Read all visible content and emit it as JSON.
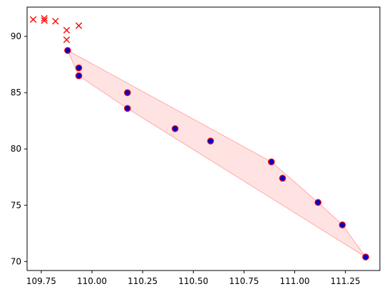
{
  "chart_data": {
    "type": "scatter",
    "title": "",
    "xlabel": "",
    "ylabel": "",
    "xlim": [
      109.68,
      111.42
    ],
    "ylim": [
      69.2,
      92.6
    ],
    "grid": false,
    "legend": null,
    "x_ticks": [
      109.75,
      110.0,
      110.25,
      110.5,
      110.75,
      111.0,
      111.25
    ],
    "x_tick_labels": [
      "109.75",
      "110.00",
      "110.25",
      "110.50",
      "110.75",
      "111.00",
      "111.25"
    ],
    "y_ticks": [
      70,
      75,
      80,
      85,
      90
    ],
    "y_tick_labels": [
      "70",
      "75",
      "80",
      "85",
      "90"
    ],
    "outliers": {
      "marker": "x",
      "color": "#ff0000",
      "points": [
        [
          109.71,
          91.5
        ],
        [
          109.765,
          91.6
        ],
        [
          109.765,
          91.4
        ],
        [
          109.82,
          91.35
        ],
        [
          109.875,
          90.55
        ],
        [
          109.875,
          89.7
        ],
        [
          109.935,
          90.95
        ]
      ]
    },
    "inliers": {
      "marker": "o",
      "fill_color": "#0000cc",
      "edge_color": "#ff0000",
      "points": [
        [
          109.88,
          88.75
        ],
        [
          109.935,
          87.2
        ],
        [
          109.935,
          86.5
        ],
        [
          110.175,
          85.0
        ],
        [
          110.175,
          83.6
        ],
        [
          110.41,
          81.8
        ],
        [
          110.585,
          80.7
        ],
        [
          110.885,
          78.85
        ],
        [
          110.94,
          77.4
        ],
        [
          111.115,
          75.25
        ],
        [
          111.235,
          73.25
        ],
        [
          111.35,
          70.4
        ]
      ]
    },
    "hull": {
      "fill_color": "#ffcccc",
      "fill_opacity": 0.55,
      "edge_color": "#ffaaaa",
      "vertices": [
        [
          109.88,
          88.75
        ],
        [
          110.885,
          78.85
        ],
        [
          111.115,
          75.25
        ],
        [
          111.235,
          73.25
        ],
        [
          111.35,
          70.4
        ],
        [
          110.175,
          83.6
        ],
        [
          109.935,
          86.5
        ]
      ]
    }
  }
}
